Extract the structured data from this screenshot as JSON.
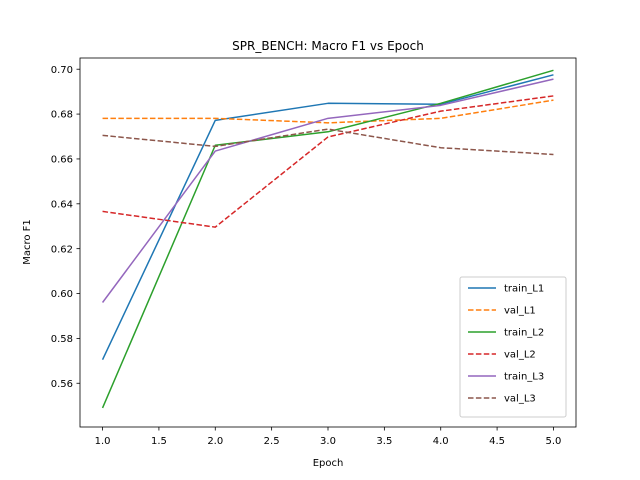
{
  "chart_data": {
    "type": "line",
    "title": "SPR_BENCH: Macro F1 vs Epoch",
    "xlabel": "Epoch",
    "ylabel": "Macro F1",
    "xlim": [
      0.8,
      5.2
    ],
    "ylim": [
      0.5405,
      0.705
    ],
    "xticks": [
      1.0,
      1.5,
      2.0,
      2.5,
      3.0,
      3.5,
      4.0,
      4.5,
      5.0
    ],
    "xtick_labels": [
      "1.0",
      "1.5",
      "2.0",
      "2.5",
      "3.0",
      "3.5",
      "4.0",
      "4.5",
      "5.0"
    ],
    "yticks": [
      0.56,
      0.58,
      0.6,
      0.62,
      0.64,
      0.66,
      0.68,
      0.7
    ],
    "ytick_labels": [
      "0.56",
      "0.58",
      "0.60",
      "0.62",
      "0.64",
      "0.66",
      "0.68",
      "0.70"
    ],
    "grid": false,
    "legend_position": "lower-right",
    "x": [
      1,
      2,
      3,
      4,
      5
    ],
    "series": [
      {
        "name": "train_L1",
        "values": [
          0.5705,
          0.6772,
          0.6848,
          0.6844,
          0.6975
        ],
        "color": "#1f77b4",
        "dashed": false
      },
      {
        "name": "val_L1",
        "values": [
          0.6781,
          0.6781,
          0.6761,
          0.6781,
          0.6862
        ],
        "color": "#ff7f0e",
        "dashed": true
      },
      {
        "name": "train_L2",
        "values": [
          0.549,
          0.6661,
          0.6721,
          0.6848,
          0.6995
        ],
        "color": "#2ca02c",
        "dashed": false
      },
      {
        "name": "val_L2",
        "values": [
          0.6366,
          0.6296,
          0.6698,
          0.6813,
          0.6881
        ],
        "color": "#d62728",
        "dashed": true
      },
      {
        "name": "train_L3",
        "values": [
          0.596,
          0.6635,
          0.6781,
          0.6839,
          0.6956
        ],
        "color": "#9467bd",
        "dashed": false
      },
      {
        "name": "val_L3",
        "values": [
          0.6705,
          0.6656,
          0.6733,
          0.665,
          0.662
        ],
        "color": "#8c564b",
        "dashed": true
      }
    ]
  }
}
